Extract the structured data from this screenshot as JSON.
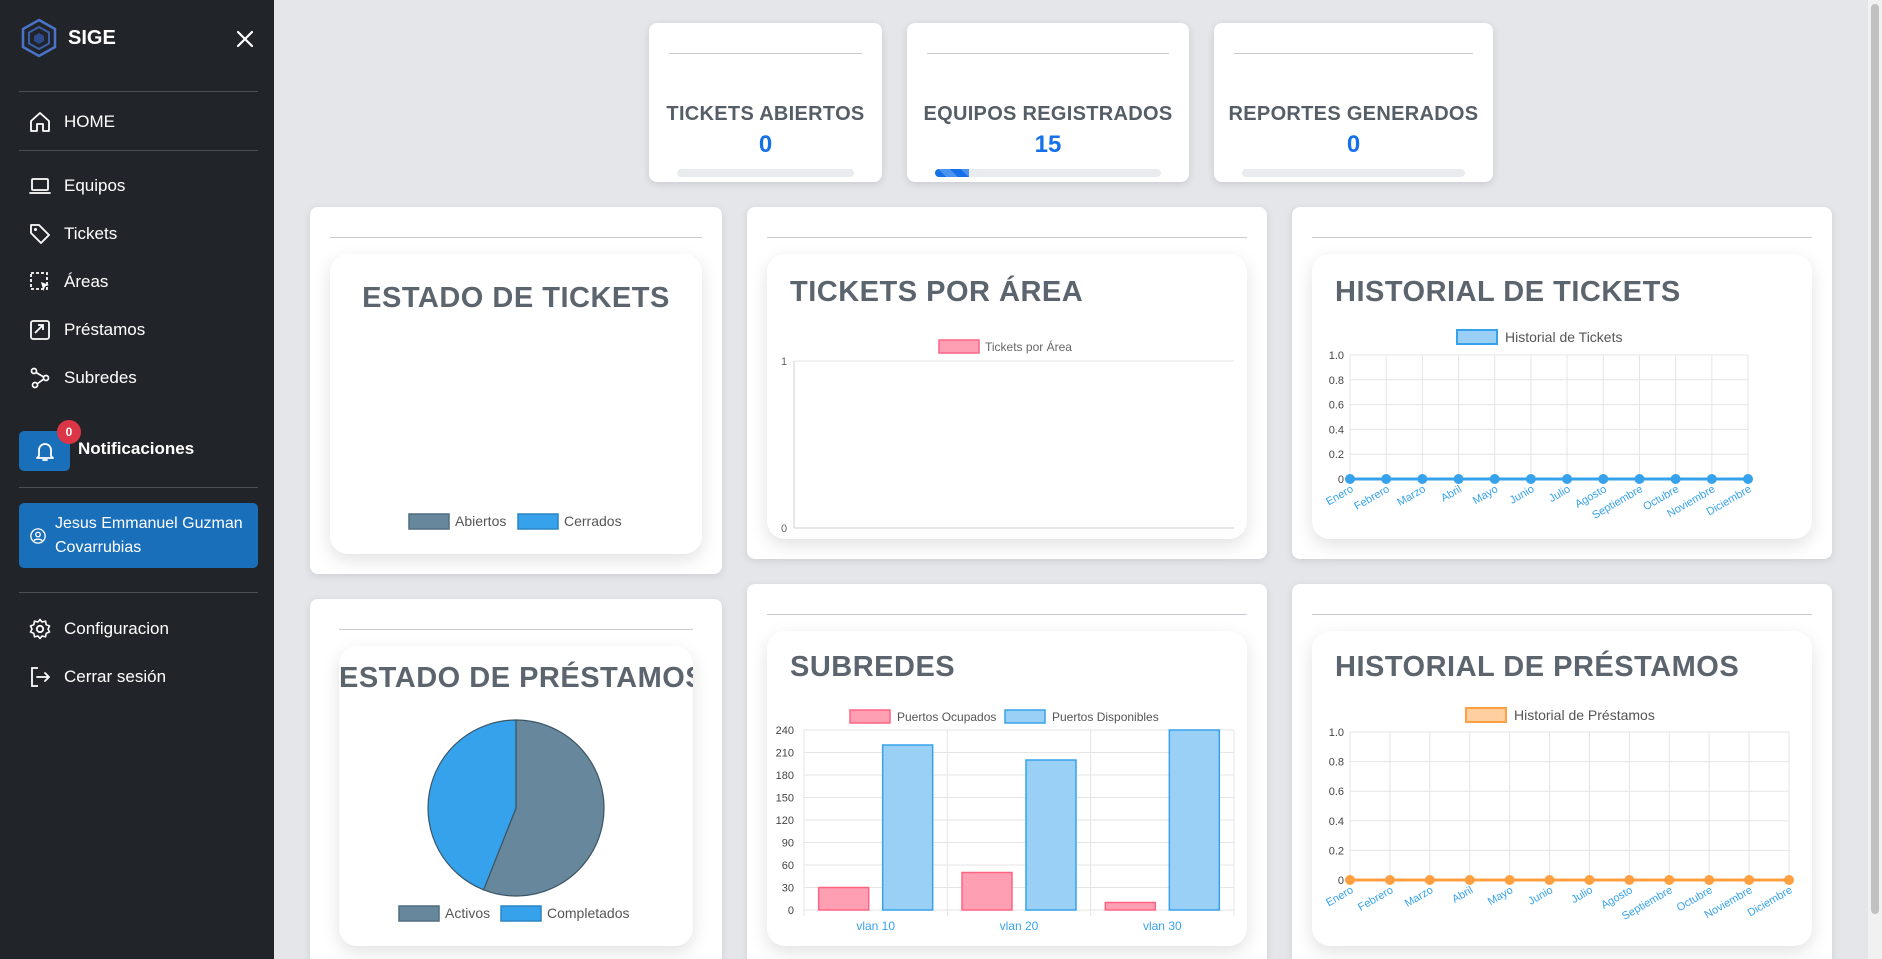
{
  "brand": {
    "name": "SIGE"
  },
  "sidebar": {
    "home": "HOME",
    "items": [
      {
        "label": "Equipos",
        "icon": "laptop-icon"
      },
      {
        "label": "Tickets",
        "icon": "tag-icon"
      },
      {
        "label": "Áreas",
        "icon": "select-area-icon"
      },
      {
        "label": "Préstamos",
        "icon": "loan-icon"
      },
      {
        "label": "Subredes",
        "icon": "network-icon"
      }
    ],
    "notifications": {
      "label": "Notificaciones",
      "count": "0"
    },
    "user": {
      "name": "Jesus Emmanuel Guzman Covarrubias"
    },
    "settings": "Configuracion",
    "logout": "Cerrar sesión"
  },
  "stats": [
    {
      "title": "TICKETS ABIERTOS",
      "value": "0",
      "progress": 0
    },
    {
      "title": "EQUIPOS REGISTRADOS",
      "value": "15",
      "progress": 0.15
    },
    {
      "title": "REPORTES GENERADOS",
      "value": "0",
      "progress": 0
    }
  ],
  "charts": {
    "estado_tickets": {
      "title": "ESTADO DE TICKETS",
      "legend": [
        "Abiertos",
        "Cerrados"
      ],
      "colors": [
        "#66879c",
        "#36a2eb"
      ]
    },
    "tickets_area": {
      "title": "TICKETS POR ÁREA",
      "legend": "Tickets por Área",
      "y_ticks": [
        "1",
        "0"
      ]
    },
    "historial_tickets": {
      "title": "HISTORIAL DE TICKETS",
      "legend": "Historial de Tickets",
      "y_ticks": [
        "1.0",
        "0.8",
        "0.6",
        "0.4",
        "0.2",
        "0"
      ]
    },
    "estado_prestamos": {
      "title": "ESTADO DE PRÉSTAMOS",
      "legend": [
        "Activos",
        "Completados"
      ]
    },
    "subredes": {
      "title": "SUBREDES",
      "legend": [
        "Puertos Ocupados",
        "Puertos Disponibles"
      ],
      "y_ticks": [
        "240",
        "210",
        "180",
        "150",
        "120",
        "90",
        "60",
        "30",
        "0"
      ]
    },
    "historial_prestamos": {
      "title": "HISTORIAL DE PRÉSTAMOS",
      "legend": "Historial de Préstamos",
      "y_ticks": [
        "1.0",
        "0.8",
        "0.6",
        "0.4",
        "0.2",
        "0"
      ]
    }
  },
  "chart_data": [
    {
      "type": "pie",
      "title": "ESTADO DE TICKETS",
      "categories": [
        "Abiertos",
        "Cerrados"
      ],
      "values": [
        0,
        0
      ]
    },
    {
      "type": "bar",
      "title": "TICKETS POR ÁREA",
      "categories": [],
      "series": [
        {
          "name": "Tickets por Área",
          "values": []
        }
      ],
      "ylim": [
        0,
        1
      ]
    },
    {
      "type": "line",
      "title": "HISTORIAL DE TICKETS",
      "categories": [
        "Enero",
        "Febrero",
        "Marzo",
        "Abril",
        "Mayo",
        "Junio",
        "Julio",
        "Agosto",
        "Septiembre",
        "Octubre",
        "Noviembre",
        "Diciembre"
      ],
      "series": [
        {
          "name": "Historial de Tickets",
          "values": [
            0,
            0,
            0,
            0,
            0,
            0,
            0,
            0,
            0,
            0,
            0,
            0
          ]
        }
      ],
      "ylim": [
        0,
        1
      ],
      "grid": true
    },
    {
      "type": "pie",
      "title": "ESTADO DE PRÉSTAMOS",
      "categories": [
        "Activos",
        "Completados"
      ],
      "values": [
        56,
        44
      ]
    },
    {
      "type": "bar",
      "title": "SUBREDES",
      "categories": [
        "vlan 10",
        "vlan 20",
        "vlan 30"
      ],
      "series": [
        {
          "name": "Puertos Ocupados",
          "values": [
            30,
            50,
            10
          ]
        },
        {
          "name": "Puertos Disponibles",
          "values": [
            220,
            200,
            240
          ]
        }
      ],
      "ylim": [
        0,
        240
      ],
      "grid": true
    },
    {
      "type": "line",
      "title": "HISTORIAL DE PRÉSTAMOS",
      "categories": [
        "Enero",
        "Febrero",
        "Marzo",
        "Abril",
        "Mayo",
        "Junio",
        "Julio",
        "Agosto",
        "Septiembre",
        "Octubre",
        "Noviembre",
        "Diciembre"
      ],
      "series": [
        {
          "name": "Historial de Préstamos",
          "values": [
            0,
            0,
            0,
            0,
            0,
            0,
            0,
            0,
            0,
            0,
            0,
            0
          ]
        }
      ],
      "ylim": [
        0,
        1
      ],
      "grid": true
    }
  ]
}
